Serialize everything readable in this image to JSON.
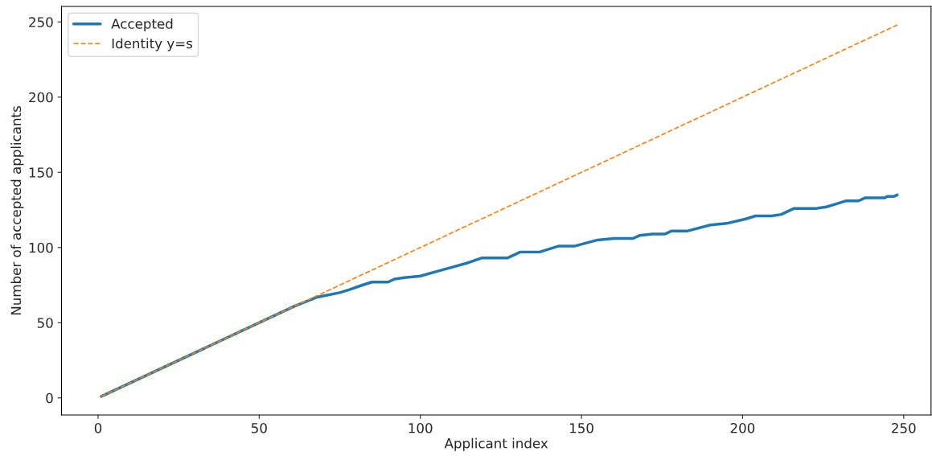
{
  "chart_data": {
    "type": "line",
    "xlabel": "Applicant index",
    "ylabel": "Number of accepted applicants",
    "xlim": [
      -11.35,
      258.5
    ],
    "ylim": [
      -11.35,
      260.35
    ],
    "xticks": [
      0,
      50,
      100,
      150,
      200,
      250
    ],
    "yticks": [
      0,
      50,
      100,
      150,
      200,
      250
    ],
    "grid": false,
    "legend": "top left",
    "series": [
      {
        "name": "Accepted",
        "color": "#1f77b4",
        "line_style": "solid",
        "x": [
          1,
          61,
          68,
          75,
          78,
          82,
          85,
          90,
          92,
          95,
          100,
          105,
          110,
          115,
          119,
          127,
          131,
          137,
          143,
          148,
          155,
          160,
          166,
          168,
          172,
          176,
          178,
          183,
          190,
          195,
          201,
          204,
          209,
          212,
          216,
          223,
          226,
          229,
          232,
          236,
          238,
          244,
          245,
          247,
          248
        ],
        "values": [
          1,
          61,
          67,
          70,
          72,
          75,
          77,
          77,
          79,
          80,
          81,
          84,
          87,
          90,
          93,
          93,
          97,
          97,
          101,
          101,
          105,
          106,
          106,
          108,
          109,
          109,
          111,
          111,
          115,
          116,
          119,
          121,
          121,
          122,
          126,
          126,
          127,
          129,
          131,
          131,
          133,
          133,
          134,
          134,
          135
        ]
      },
      {
        "name": "Identity y=s",
        "color": "#ff7f0e",
        "line_style": "dashed",
        "x": [
          1,
          248
        ],
        "values": [
          1,
          248
        ]
      }
    ]
  }
}
